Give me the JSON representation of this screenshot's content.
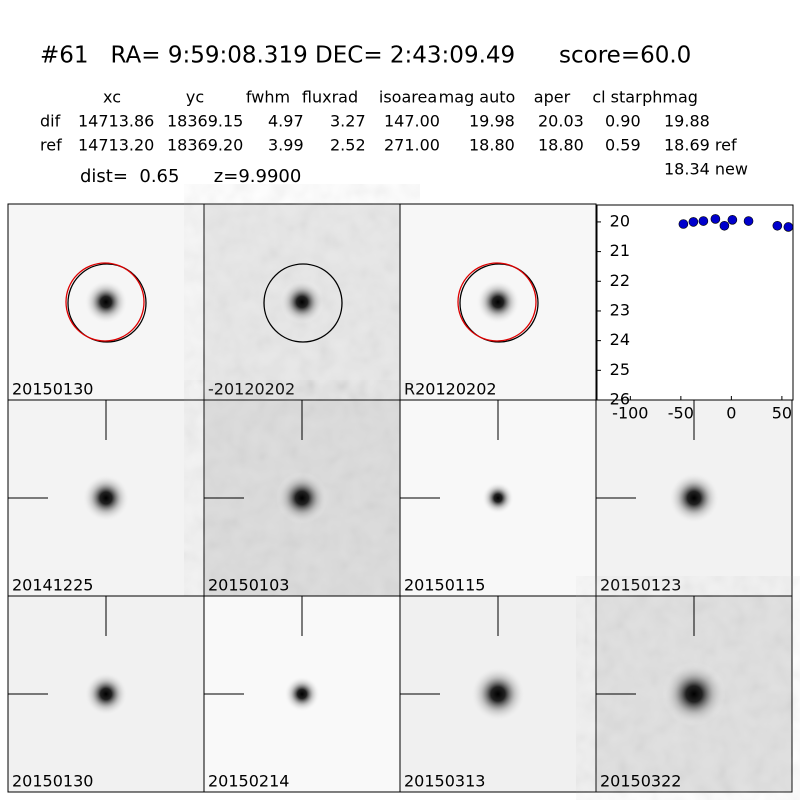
{
  "header": {
    "title": "#61   RA= 9:59:08.319 DEC= 2:43:09.49      score=60.0"
  },
  "table": {
    "columns": [
      "xc",
      "yc",
      "fwhm",
      "fluxrad",
      "isoarea",
      "mag auto",
      "aper",
      "cl star",
      "phmag"
    ],
    "rows": [
      [
        "dif",
        "14713.86",
        "18369.15",
        "4.97",
        "3.27",
        "147.00",
        "19.98",
        "20.03",
        "0.90",
        "19.88"
      ],
      [
        "ref",
        "14713.20",
        "18369.20",
        "3.99",
        "2.52",
        "271.00",
        "18.80",
        "18.80",
        "0.59",
        "18.69 ref"
      ]
    ],
    "extra": "18.34 new"
  },
  "dist_line": "dist=  0.65      z=9.9900",
  "panels": [
    {
      "label": "20150130"
    },
    {
      "label": "-20120202"
    },
    {
      "label": "R20120202"
    },
    {
      "label": "20141225"
    },
    {
      "label": "20150103"
    },
    {
      "label": "20150115"
    },
    {
      "label": "20150123"
    },
    {
      "label": "20150130",
      "color": "#ff0000"
    },
    {
      "label": "20150214"
    },
    {
      "label": "20150313"
    },
    {
      "label": "20150322"
    }
  ],
  "chart_data": {
    "type": "scatter",
    "color": "#0000cc",
    "x": [
      -47.5,
      -37.6,
      -27.7,
      -15.8,
      -6.9,
      1,
      17,
      45.5,
      56.4
    ],
    "values": [
      20.07,
      20.0,
      19.97,
      19.9,
      20.13,
      19.93,
      19.97,
      20.13,
      20.17
    ],
    "xlim": [
      -133,
      61
    ],
    "ylim": [
      26,
      19.43
    ],
    "xticks": [
      -100,
      -50,
      0,
      50
    ],
    "yticks": [
      20,
      21,
      22,
      23,
      24,
      25,
      26
    ]
  }
}
